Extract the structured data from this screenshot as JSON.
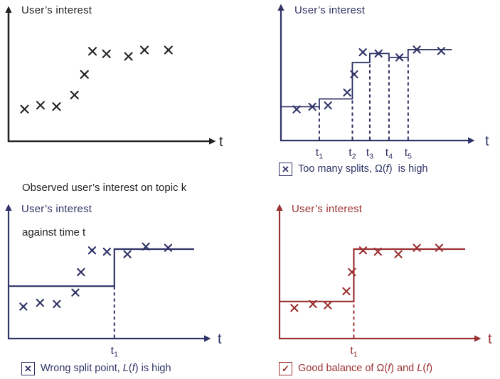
{
  "figure": {
    "background": "#ffffff",
    "icons": {
      "x-box": "✕",
      "check-box": "✓"
    }
  },
  "chart_data": [
    {
      "id": "observed",
      "type": "scatter",
      "color": "#222222",
      "title": "User’s interest",
      "xlabel": "t",
      "x_range": [
        0,
        10
      ],
      "y_range": [
        0,
        10
      ],
      "grid": false,
      "points": [
        [
          0.8,
          2.5
        ],
        [
          1.6,
          2.8
        ],
        [
          2.4,
          2.7
        ],
        [
          3.3,
          3.6
        ],
        [
          3.8,
          5.2
        ],
        [
          4.2,
          7.0
        ],
        [
          4.9,
          6.8
        ],
        [
          6.0,
          6.6
        ],
        [
          6.8,
          7.1
        ],
        [
          8.0,
          7.1
        ]
      ],
      "step_segments": [],
      "splits": [],
      "caption_icon": null,
      "caption_lines": [
        "Observed user’s interest on topic k",
        "against time t"
      ]
    },
    {
      "id": "too-many-splits",
      "type": "scatter+step",
      "color": "#2f3366",
      "title": "User’s interest",
      "xlabel": "t",
      "x_range": [
        0,
        10
      ],
      "y_range": [
        0,
        10
      ],
      "grid": false,
      "points": [
        [
          0.9,
          2.4
        ],
        [
          1.8,
          2.6
        ],
        [
          2.7,
          2.7
        ],
        [
          3.8,
          3.7
        ],
        [
          4.2,
          5.1
        ],
        [
          4.7,
          6.8
        ],
        [
          5.6,
          6.7
        ],
        [
          6.8,
          6.4
        ],
        [
          7.8,
          7.0
        ],
        [
          9.2,
          6.9
        ]
      ],
      "step_segments": [
        {
          "from": 0.0,
          "to": 2.2,
          "level": 2.6
        },
        {
          "from": 2.2,
          "to": 4.1,
          "level": 3.2
        },
        {
          "from": 4.1,
          "to": 5.1,
          "level": 6.0
        },
        {
          "from": 5.1,
          "to": 6.2,
          "level": 6.7
        },
        {
          "from": 6.2,
          "to": 7.3,
          "level": 6.4
        },
        {
          "from": 7.3,
          "to": 9.8,
          "level": 7.0
        }
      ],
      "splits": [
        {
          "t": 2.2,
          "label": "t",
          "sub": "1",
          "dash_top": 2.6
        },
        {
          "t": 4.1,
          "label": "t",
          "sub": "2",
          "dash_top": 3.2
        },
        {
          "t": 5.1,
          "label": "t",
          "sub": "3",
          "dash_top": 6.0
        },
        {
          "t": 6.2,
          "label": "t",
          "sub": "4",
          "dash_top": 6.4
        },
        {
          "t": 7.3,
          "label": "t",
          "sub": "5",
          "dash_top": 6.4
        }
      ],
      "caption_icon": "x-box",
      "caption_segments": [
        {
          "text": "Too many splits, Ω(",
          "italic": false
        },
        {
          "text": "f",
          "italic": true
        },
        {
          "text": ")  is high",
          "italic": false
        }
      ]
    },
    {
      "id": "wrong-split-point",
      "type": "scatter+step",
      "color": "#2f3366",
      "title": "User’s interest",
      "xlabel": "t",
      "x_range": [
        0,
        10
      ],
      "y_range": [
        0,
        10
      ],
      "grid": false,
      "points": [
        [
          0.8,
          2.5
        ],
        [
          1.7,
          2.8
        ],
        [
          2.6,
          2.7
        ],
        [
          3.6,
          3.6
        ],
        [
          3.9,
          5.2
        ],
        [
          4.5,
          6.9
        ],
        [
          5.3,
          6.8
        ],
        [
          6.4,
          6.6
        ],
        [
          7.4,
          7.2
        ],
        [
          8.6,
          7.1
        ]
      ],
      "step_segments": [
        {
          "from": 0.0,
          "to": 5.7,
          "level": 4.1
        },
        {
          "from": 5.7,
          "to": 10.0,
          "level": 7.0
        }
      ],
      "splits": [
        {
          "t": 5.7,
          "label": "t",
          "sub": "1",
          "dash_top": 4.1
        }
      ],
      "caption_icon": "x-box",
      "caption_segments": [
        {
          "text": "Wrong split point, ",
          "italic": false
        },
        {
          "text": "L",
          "italic": true
        },
        {
          "text": "(",
          "italic": false
        },
        {
          "text": "f",
          "italic": true
        },
        {
          "text": ") is high",
          "italic": false
        }
      ]
    },
    {
      "id": "good-balance",
      "type": "scatter+step",
      "color": "#9b3032",
      "title": "User’s interest",
      "xlabel": "t",
      "x_range": [
        0,
        10
      ],
      "y_range": [
        0,
        10
      ],
      "grid": false,
      "points": [
        [
          0.8,
          2.4
        ],
        [
          1.8,
          2.7
        ],
        [
          2.6,
          2.6
        ],
        [
          3.6,
          3.7
        ],
        [
          3.9,
          5.2
        ],
        [
          4.5,
          6.9
        ],
        [
          5.3,
          6.8
        ],
        [
          6.4,
          6.6
        ],
        [
          7.4,
          7.1
        ],
        [
          8.6,
          7.1
        ]
      ],
      "step_segments": [
        {
          "from": 0.0,
          "to": 4.0,
          "level": 2.9
        },
        {
          "from": 4.0,
          "to": 10.0,
          "level": 7.0
        }
      ],
      "splits": [
        {
          "t": 4.0,
          "label": "t",
          "sub": "1",
          "dash_top": 2.9
        }
      ],
      "caption_icon": "check-box",
      "caption_segments": [
        {
          "text": "Good balance of Ω(",
          "italic": false
        },
        {
          "text": "f",
          "italic": true
        },
        {
          "text": ") and ",
          "italic": false
        },
        {
          "text": "L",
          "italic": true
        },
        {
          "text": "(",
          "italic": false
        },
        {
          "text": "f",
          "italic": true
        },
        {
          "text": ")",
          "italic": false
        }
      ]
    }
  ]
}
